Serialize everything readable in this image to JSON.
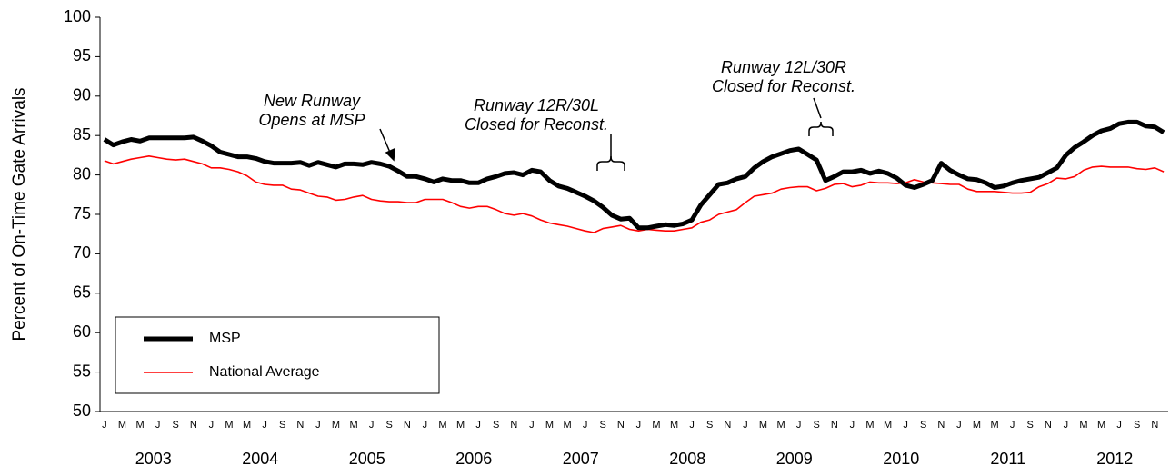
{
  "chart_data": {
    "type": "line",
    "y_label": "Percent of On-Time Gate Arrivals",
    "ylim": [
      50,
      100
    ],
    "yticks": [
      50,
      55,
      60,
      65,
      70,
      75,
      80,
      85,
      90,
      95,
      100
    ],
    "grid": false,
    "legend": "lower left",
    "years": [
      "2003",
      "2004",
      "2005",
      "2006",
      "2007",
      "2008",
      "2009",
      "2010",
      "2011",
      "2012"
    ],
    "categories": [
      "J",
      null,
      "M",
      null,
      "M",
      null,
      "J",
      null,
      "S",
      null,
      "N",
      null,
      "J",
      null,
      "M",
      null,
      "M",
      null,
      "J",
      null,
      "S",
      null,
      "N",
      null,
      "J",
      null,
      "M",
      null,
      "M",
      null,
      "J",
      null,
      "S",
      null,
      "N",
      null,
      "J",
      null,
      "M",
      null,
      "M",
      null,
      "J",
      null,
      "S",
      null,
      "N",
      null,
      "J",
      null,
      "M",
      null,
      "M",
      null,
      "J",
      null,
      "S",
      null,
      "N",
      null,
      "J",
      null,
      "M",
      null,
      "M",
      null,
      "J",
      null,
      "S",
      null,
      "N",
      null,
      "J",
      null,
      "M",
      null,
      "M",
      null,
      "J",
      null,
      "S",
      null,
      "N",
      null,
      "J",
      null,
      "M",
      null,
      "M",
      null,
      "J",
      null,
      "S",
      null,
      "N",
      null,
      "J",
      null,
      "M",
      null,
      "M",
      null,
      "J",
      null,
      "S",
      null,
      "N",
      null,
      "J",
      null,
      "M",
      null,
      "M",
      null,
      "J",
      null,
      "S",
      null,
      "N",
      null
    ],
    "series": [
      {
        "name": "MSP",
        "color": "#000000",
        "values": [
          84.5,
          83.8,
          84.2,
          84.5,
          84.3,
          84.7,
          84.7,
          84.7,
          84.7,
          84.7,
          84.8,
          84.3,
          83.7,
          82.9,
          82.6,
          82.3,
          82.3,
          82.1,
          81.7,
          81.5,
          81.5,
          81.5,
          81.6,
          81.2,
          81.6,
          81.3,
          81.0,
          81.4,
          81.4,
          81.3,
          81.6,
          81.4,
          81.1,
          80.5,
          79.8,
          79.8,
          79.5,
          79.1,
          79.5,
          79.3,
          79.3,
          79.0,
          79.0,
          79.5,
          79.8,
          80.2,
          80.3,
          80.0,
          80.6,
          80.4,
          79.3,
          78.6,
          78.3,
          77.8,
          77.3,
          76.7,
          75.9,
          74.9,
          74.4,
          74.5,
          73.3,
          73.3,
          73.5,
          73.7,
          73.6,
          73.8,
          74.3,
          76.2,
          77.5,
          78.8,
          79.0,
          79.5,
          79.8,
          80.9,
          81.7,
          82.3,
          82.7,
          83.1,
          83.3,
          82.6,
          81.9,
          79.3,
          79.8,
          80.4,
          80.4,
          80.6,
          80.2,
          80.5,
          80.2,
          79.6,
          78.7,
          78.4,
          78.8,
          79.3,
          81.5,
          80.6,
          80.0,
          79.5,
          79.4,
          79.0,
          78.4,
          78.6,
          79.0,
          79.3,
          79.5,
          79.7,
          80.3,
          80.9,
          82.5,
          83.5,
          84.2,
          85.0,
          85.6,
          85.9,
          86.5,
          86.7,
          86.7,
          86.2,
          86.1,
          85.4
        ]
      },
      {
        "name": "National Average",
        "color": "#ff0000",
        "values": [
          81.8,
          81.4,
          81.7,
          82.0,
          82.2,
          82.4,
          82.2,
          82.0,
          81.9,
          82.0,
          81.7,
          81.4,
          80.9,
          80.9,
          80.7,
          80.4,
          79.9,
          79.1,
          78.8,
          78.7,
          78.7,
          78.2,
          78.1,
          77.7,
          77.3,
          77.2,
          76.8,
          76.9,
          77.2,
          77.4,
          76.9,
          76.7,
          76.6,
          76.6,
          76.5,
          76.5,
          76.9,
          76.9,
          76.9,
          76.5,
          76.0,
          75.8,
          76.0,
          76.0,
          75.6,
          75.1,
          74.9,
          75.1,
          74.8,
          74.3,
          73.9,
          73.7,
          73.5,
          73.2,
          72.9,
          72.7,
          73.2,
          73.4,
          73.6,
          73.1,
          72.9,
          73.1,
          73.0,
          72.9,
          72.9,
          73.1,
          73.3,
          74.0,
          74.3,
          75.0,
          75.3,
          75.6,
          76.5,
          77.3,
          77.5,
          77.7,
          78.2,
          78.4,
          78.5,
          78.5,
          78.0,
          78.3,
          78.8,
          78.9,
          78.5,
          78.7,
          79.1,
          79.0,
          79.0,
          78.9,
          79.0,
          79.4,
          79.1,
          79.0,
          78.9,
          78.8,
          78.8,
          78.2,
          77.9,
          77.9,
          77.9,
          77.8,
          77.7,
          77.7,
          77.8,
          78.5,
          78.9,
          79.6,
          79.5,
          79.8,
          80.6,
          81.0,
          81.1,
          81.0,
          81.0,
          81.0,
          80.8,
          80.7,
          80.9,
          80.4
        ]
      }
    ],
    "annotations": [
      [
        "New Runway",
        "Opens at MSP"
      ],
      [
        "Runway 12R/30L",
        "Closed for Reconst."
      ],
      [
        "Runway 12L/30R",
        "Closed for Reconst."
      ]
    ]
  }
}
